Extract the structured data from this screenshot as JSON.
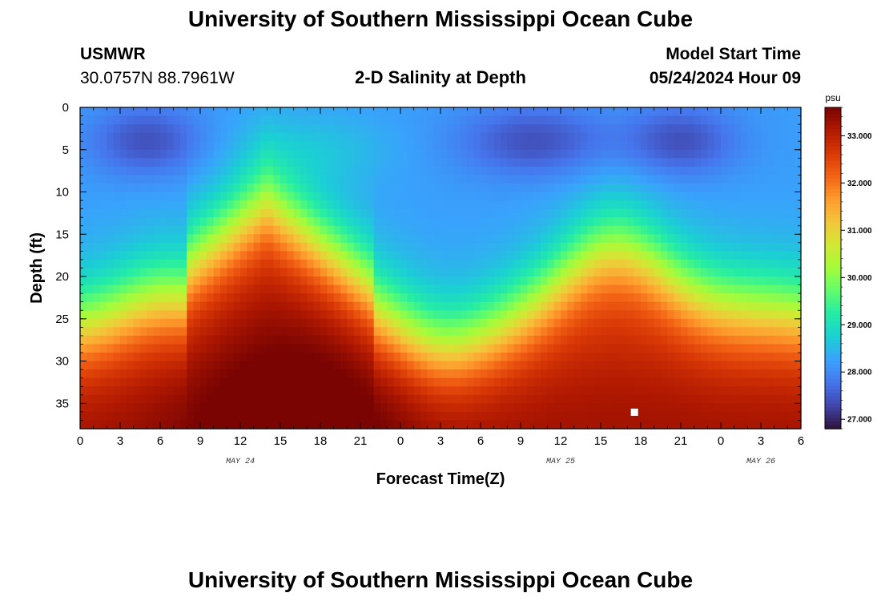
{
  "header": {
    "title": "University of Southern Mississippi Ocean Cube",
    "station": "USMWR",
    "coords": "30.0757N  88.7961W",
    "subtitle": "2-D Salinity at Depth",
    "start_label": "Model Start Time",
    "start_value": "05/24/2024 Hour 09"
  },
  "footer": {
    "title": "University of Southern Mississippi Ocean Cube"
  },
  "chart_data": {
    "type": "heatmap",
    "title": "2-D Salinity at Depth",
    "xlabel": "Forecast Time(Z)",
    "ylabel": "Depth (ft)",
    "x_tick_labels": [
      "0",
      "3",
      "6",
      "9",
      "12",
      "15",
      "18",
      "21",
      "0",
      "3",
      "6",
      "9",
      "12",
      "15",
      "18",
      "21",
      "0",
      "3",
      "6"
    ],
    "x_range_hours": [
      0,
      54
    ],
    "date_labels": [
      {
        "label": "MAY 24",
        "hour": 12
      },
      {
        "label": "MAY 25",
        "hour": 36
      },
      {
        "label": "MAY 26",
        "hour": 51
      }
    ],
    "y_ticks": [
      0,
      5,
      10,
      15,
      20,
      25,
      30,
      35
    ],
    "ylim": [
      0,
      38
    ],
    "y_inverted": true,
    "colorbar": {
      "unit": "psu",
      "min": 26.8,
      "max": 33.6,
      "ticks": [
        27.0,
        28.0,
        29.0,
        30.0,
        31.0,
        32.0,
        33.0
      ],
      "tick_labels": [
        "27.000",
        "28.000",
        "29.000",
        "30.000",
        "31.000",
        "32.000",
        "33.000"
      ],
      "colors": [
        "#30123b",
        "#4145ab",
        "#4675ed",
        "#39a2fc",
        "#1bcfd4",
        "#24eca6",
        "#61fc6c",
        "#a4fc3b",
        "#d1e834",
        "#f3c63a",
        "#fe9b2d",
        "#f36315",
        "#d93806",
        "#b11901",
        "#7a0402"
      ]
    },
    "marker": {
      "hour": 41.5,
      "depth_ft": 36
    },
    "grid": false
  }
}
